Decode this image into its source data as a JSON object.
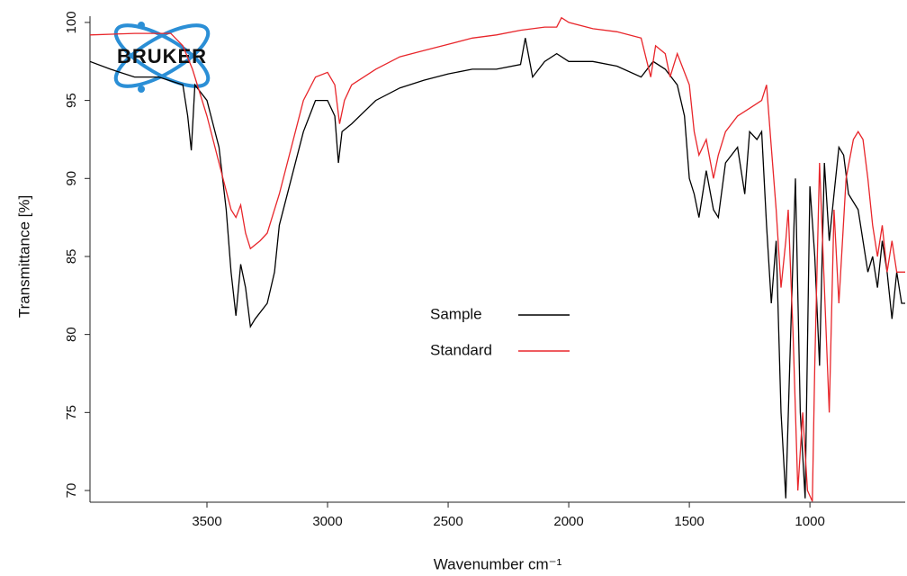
{
  "chart_data": {
    "type": "line",
    "logo": "BRUKER",
    "xlabel": "Wavenumber cm⁻¹",
    "ylabel": "Transmittance [%]",
    "xlim": [
      3985,
      605
    ],
    "ylim": [
      69.25,
      100.4
    ],
    "xticks": [
      3500,
      3000,
      2500,
      2000,
      1500,
      1000
    ],
    "yticks": [
      70,
      75,
      80,
      85,
      90,
      95,
      100
    ],
    "legend": "center",
    "series": [
      {
        "name": "Sample",
        "color": "#000000",
        "x": [
          3985,
          3900,
          3800,
          3700,
          3600,
          3580,
          3565,
          3550,
          3500,
          3450,
          3420,
          3400,
          3380,
          3360,
          3340,
          3320,
          3300,
          3250,
          3220,
          3200,
          3150,
          3100,
          3050,
          3000,
          2970,
          2955,
          2940,
          2900,
          2800,
          2700,
          2600,
          2500,
          2400,
          2300,
          2200,
          2180,
          2150,
          2100,
          2050,
          2000,
          1900,
          1800,
          1700,
          1650,
          1600,
          1550,
          1520,
          1500,
          1480,
          1460,
          1430,
          1400,
          1380,
          1350,
          1300,
          1270,
          1250,
          1220,
          1200,
          1180,
          1160,
          1140,
          1120,
          1100,
          1080,
          1060,
          1040,
          1020,
          1000,
          980,
          960,
          940,
          920,
          900,
          880,
          860,
          840,
          800,
          780,
          760,
          740,
          720,
          700,
          680,
          660,
          640,
          620,
          605
        ],
        "values": [
          97.5,
          97,
          96.5,
          96.5,
          96,
          94,
          91.8,
          96,
          95,
          92,
          88,
          84,
          81.2,
          84.5,
          83,
          80.5,
          81,
          82,
          84,
          87,
          90,
          93,
          95,
          95,
          94,
          91,
          93,
          93.5,
          95,
          95.8,
          96.3,
          96.7,
          97,
          97,
          97.3,
          99,
          96.5,
          97.5,
          98,
          97.5,
          97.5,
          97.2,
          96.5,
          97.5,
          97,
          96,
          94,
          90,
          89,
          87.5,
          90.5,
          88,
          87.5,
          91,
          92,
          89,
          93,
          92.5,
          93,
          87,
          82,
          86,
          75,
          69.5,
          80,
          90,
          75,
          69.5,
          89.5,
          85,
          78,
          91,
          86,
          89,
          92,
          91.5,
          89,
          88,
          86,
          84,
          85,
          83,
          86,
          84,
          81,
          84,
          82,
          82
        ]
      },
      {
        "name": "Standard",
        "color": "#e8262b",
        "x": [
          3985,
          3800,
          3650,
          3600,
          3560,
          3500,
          3450,
          3400,
          3380,
          3360,
          3340,
          3320,
          3280,
          3250,
          3200,
          3150,
          3100,
          3050,
          3000,
          2970,
          2950,
          2930,
          2900,
          2800,
          2700,
          2600,
          2500,
          2400,
          2300,
          2200,
          2100,
          2050,
          2030,
          2000,
          1900,
          1800,
          1700,
          1660,
          1640,
          1600,
          1580,
          1550,
          1500,
          1480,
          1460,
          1430,
          1400,
          1380,
          1350,
          1300,
          1250,
          1200,
          1180,
          1160,
          1140,
          1120,
          1100,
          1090,
          1070,
          1050,
          1030,
          1010,
          990,
          980,
          960,
          940,
          920,
          900,
          880,
          850,
          820,
          800,
          780,
          760,
          740,
          720,
          700,
          680,
          660,
          640,
          605
        ],
        "values": [
          99.2,
          99.3,
          99.3,
          98.5,
          97,
          94,
          91,
          88,
          87.5,
          88.3,
          86.5,
          85.5,
          86,
          86.5,
          89,
          92,
          95,
          96.5,
          96.8,
          96,
          93.5,
          95,
          96,
          97,
          97.8,
          98.2,
          98.6,
          99,
          99.2,
          99.5,
          99.7,
          99.7,
          100.3,
          100,
          99.6,
          99.4,
          99,
          96.5,
          98.5,
          98,
          96.5,
          98,
          96,
          93,
          91.5,
          92.5,
          90,
          91.5,
          93,
          94,
          94.5,
          95,
          96,
          92,
          88,
          83,
          86,
          88,
          80,
          70,
          75,
          70,
          69.3,
          78,
          91,
          83,
          75,
          88,
          82,
          90,
          92.5,
          93,
          92.5,
          90,
          87,
          85,
          87,
          84,
          86,
          84,
          84
        ]
      }
    ]
  }
}
